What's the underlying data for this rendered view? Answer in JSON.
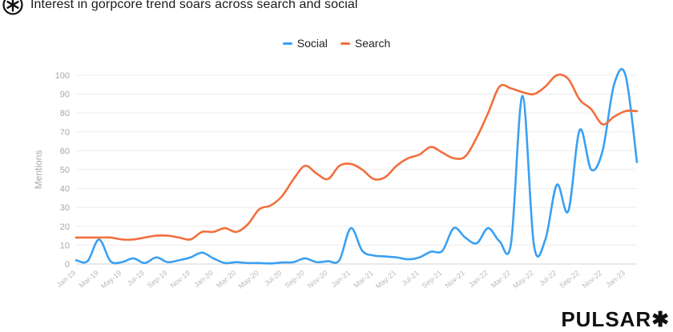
{
  "header": {
    "title": "Interest in gorpcore trend soars across search and social",
    "logo_icon": "pulsar-star-icon"
  },
  "brand": {
    "text": "PULSAR✱"
  },
  "colors": {
    "social": "#3aa0f3",
    "search": "#f26f3d",
    "grid": "#ececec",
    "axis": "#d0d0d0"
  },
  "chart_data": {
    "type": "line",
    "title": "Interest in gorpcore trend soars across search and social",
    "ylabel": "Mentions",
    "xlabel": "",
    "ylim": [
      0,
      100
    ],
    "yticks": [
      0,
      10,
      20,
      30,
      40,
      50,
      60,
      70,
      80,
      90,
      100
    ],
    "legend_position": "top-center",
    "grid": true,
    "x": [
      "Jan-19",
      "Feb-19",
      "Mar-19",
      "Apr-19",
      "May-19",
      "Jun-19",
      "Jul-19",
      "Aug-19",
      "Sep-19",
      "Oct-19",
      "Nov-19",
      "Dec-19",
      "Jan-20",
      "Feb-20",
      "Mar-20",
      "Apr-20",
      "May-20",
      "Jun-20",
      "Jul-20",
      "Aug-20",
      "Sep-20",
      "Oct-20",
      "Nov-20",
      "Dec-20",
      "Jan-21",
      "Feb-21",
      "Mar-21",
      "Apr-21",
      "May-21",
      "Jun-21",
      "Jul-21",
      "Aug-21",
      "Sep-21",
      "Oct-21",
      "Nov-21",
      "Dec-21",
      "Jan-22",
      "Feb-22",
      "Mar-22",
      "Apr-22",
      "May-22",
      "Jun-22",
      "Jul-22",
      "Aug-22",
      "Sep-22",
      "Oct-22",
      "Nov-22",
      "Dec-22",
      "Jan-23",
      "Feb-23"
    ],
    "x_tick_labels": [
      "Jan-19",
      "Mar-19",
      "May-19",
      "Jul-19",
      "Sep-19",
      "Nov-19",
      "Jan-20",
      "Mar-20",
      "May-20",
      "Jul-20",
      "Sep-20",
      "Nov-20",
      "Jan-21",
      "Mar-21",
      "May-21",
      "Jul-21",
      "Sep-21",
      "Nov-21",
      "Jan-22",
      "Mar-22",
      "May-22",
      "Jul-22",
      "Sep-22",
      "Nov-22",
      "Jan-23"
    ],
    "series": [
      {
        "name": "Social",
        "values": [
          2,
          1.5,
          13,
          1.5,
          1,
          3,
          0.5,
          3.5,
          1,
          2,
          3.5,
          6,
          3,
          0.5,
          1,
          0.5,
          0.5,
          0.3,
          0.8,
          1,
          3,
          1,
          1.5,
          2,
          19,
          7,
          4.5,
          4,
          3.5,
          2.5,
          3.5,
          6.5,
          7,
          19,
          14,
          11,
          19,
          12,
          11,
          89,
          10,
          13,
          42,
          28,
          71,
          50,
          60,
          95,
          100,
          54
        ]
      },
      {
        "name": "Search",
        "values": [
          14,
          14,
          14,
          14,
          13,
          13,
          14,
          15,
          15,
          14,
          13,
          17,
          17,
          19,
          17,
          21,
          29,
          31,
          36,
          45,
          52,
          48,
          45,
          52,
          53,
          50,
          45,
          46,
          52,
          56,
          58,
          62,
          59,
          56,
          57,
          67,
          80,
          94,
          93,
          91,
          90,
          94,
          100,
          98,
          87,
          82,
          74,
          78,
          81,
          81
        ]
      }
    ]
  }
}
